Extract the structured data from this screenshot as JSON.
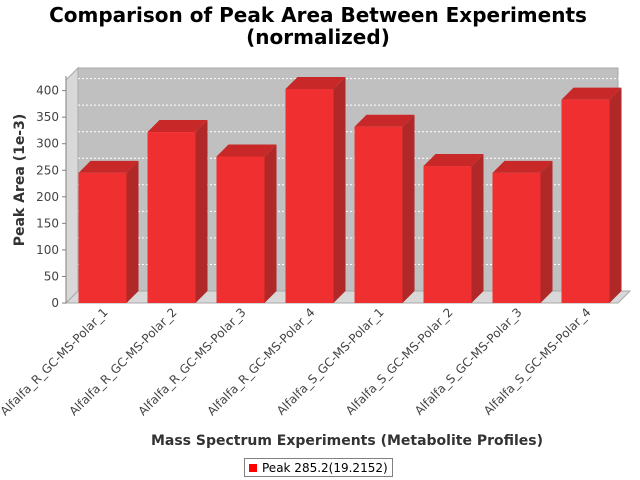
{
  "chart_data": {
    "type": "bar",
    "title": "Comparison of Peak Area Between Experiments",
    "subtitle": "(normalized)",
    "xlabel": "Mass Spectrum Experiments (Metabolite Profiles)",
    "ylabel": "Peak Area (1e-3)",
    "ylim": [
      0,
      420
    ],
    "yticks": [
      0,
      50,
      100,
      150,
      200,
      250,
      300,
      350,
      400
    ],
    "grid": true,
    "legend_position": "bottom",
    "categories": [
      "Alfalfa_R_GC-MS-Polar_1",
      "Alfalfa_R_GC-MS-Polar_2",
      "Alfalfa_R_GC-MS-Polar_3",
      "Alfalfa_R_GC-MS-Polar_4",
      "Alfalfa_S_GC-MS-Polar_1",
      "Alfalfa_S_GC-MS-Polar_2",
      "Alfalfa_S_GC-MS-Polar_3",
      "Alfalfa_S_GC-MS-Polar_4"
    ],
    "series": [
      {
        "name": "Peak 285.2(19.2152)",
        "color": "#ff0000",
        "values": [
          245,
          322,
          276,
          403,
          332,
          258,
          245,
          383
        ]
      }
    ],
    "colors": {
      "plot_background": "#c0c0c0",
      "plot_wall": "#d8d8d8",
      "bar_front": "#f03030",
      "bar_side": "#b02828",
      "bar_top": "#c82828"
    }
  }
}
